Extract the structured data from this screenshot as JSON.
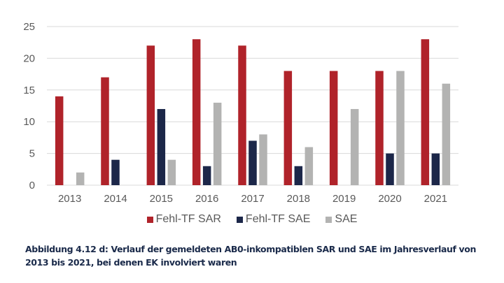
{
  "chart_data": {
    "type": "bar",
    "title": "",
    "xlabel": "",
    "ylabel": "",
    "categories": [
      "2013",
      "2014",
      "2015",
      "2016",
      "2017",
      "2018",
      "2019",
      "2020",
      "2021"
    ],
    "series": [
      {
        "name": "Fehl-TF SAR",
        "color": "#b0232a",
        "values": [
          14,
          17,
          22,
          23,
          22,
          18,
          18,
          18,
          23
        ]
      },
      {
        "name": "Fehl-TF SAE",
        "color": "#1c2749",
        "values": [
          0,
          4,
          12,
          3,
          7,
          3,
          0,
          5,
          5
        ]
      },
      {
        "name": "SAE",
        "color": "#b3b3b2",
        "values": [
          2,
          0,
          4,
          13,
          8,
          6,
          12,
          18,
          16
        ]
      }
    ],
    "ylim": [
      0,
      25
    ],
    "yticks": [
      0,
      5,
      10,
      15,
      20,
      25
    ],
    "grid": true,
    "legend_position": "bottom-center"
  },
  "caption": {
    "line1": "Abbildung 4.12 d: Verlauf der gemeldeten AB0-inkompatiblen SAR und SAE im Jahresverlauf von",
    "line2": "2013 bis 2021, bei denen EK involviert waren"
  }
}
